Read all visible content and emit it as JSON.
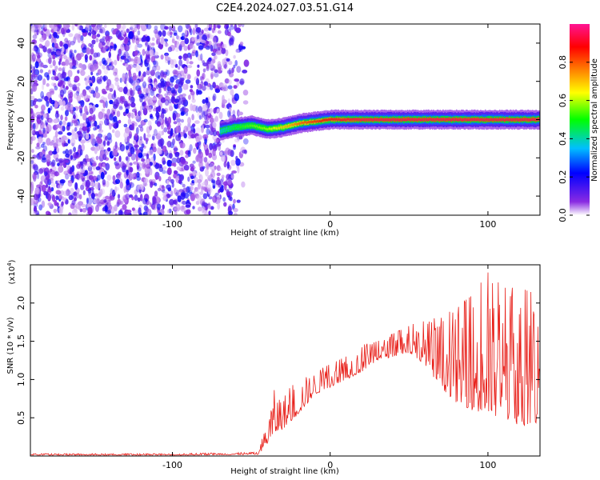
{
  "title": "C2E4.2024.027.03.51.G14",
  "chart_data": [
    {
      "type": "heatmap",
      "xlabel": "Height of straight line (km)",
      "ylabel": "Frequency (Hz)",
      "xlim": [
        -190,
        133
      ],
      "ylim": [
        -50,
        50
      ],
      "x_ticks": [
        -100,
        0,
        100
      ],
      "x_tick_labels": [
        "-100",
        "0",
        "100"
      ],
      "y_ticks": [
        -40,
        -20,
        0,
        20,
        40
      ],
      "y_tick_labels": [
        "-40",
        "-20",
        "0",
        "20",
        "40"
      ],
      "colorbar": {
        "label": "Normalized spectral amplitude",
        "range": [
          0,
          1
        ],
        "ticks": [
          0.0,
          0.2,
          0.4,
          0.6,
          0.8
        ],
        "tick_labels": [
          "0.0",
          "0.2",
          "0.4",
          "0.6",
          "0.8"
        ],
        "colormap": [
          "#ffffff",
          "#8a2be2",
          "#0000ff",
          "#00bfff",
          "#00ff00",
          "#ffff00",
          "#ff8000",
          "#ff0000",
          "#ff1493"
        ]
      },
      "noise_region": {
        "x_range": [
          -190,
          -53
        ],
        "y_range": [
          -50,
          50
        ]
      },
      "signal_track": {
        "x": [
          -70,
          -60,
          -50,
          -40,
          -30,
          -20,
          -10,
          0,
          20,
          40,
          60,
          80,
          100,
          120,
          133
        ],
        "freq": [
          -6,
          -4,
          -3,
          -5,
          -4,
          -2,
          -1,
          0,
          0,
          0,
          0,
          0,
          0,
          0,
          0
        ],
        "amplitude": [
          0.4,
          0.5,
          0.55,
          0.6,
          0.7,
          0.8,
          0.85,
          0.9,
          0.95,
          0.95,
          0.95,
          0.95,
          0.95,
          0.95,
          0.95
        ]
      },
      "grid": false
    },
    {
      "type": "line",
      "xlabel": "Height of straight line (km)",
      "ylabel": "SNR (10 * v/v)",
      "multiplier_label": "(x10",
      "multiplier_exponent": "4",
      "multiplier_close": ")",
      "xlim": [
        -190,
        133
      ],
      "ylim": [
        0,
        2.5
      ],
      "x_ticks": [
        -100,
        0,
        100
      ],
      "x_tick_labels": [
        "-100",
        "0",
        "100"
      ],
      "y_ticks": [
        0.5,
        1.0,
        1.5,
        2.0
      ],
      "y_tick_labels": [
        "0.5",
        "1.0",
        "1.5",
        "2.0"
      ],
      "series_color": "#e8201a",
      "envelope": {
        "x": [
          -190,
          -100,
          -45,
          -40,
          -35,
          -30,
          -20,
          -10,
          0,
          10,
          20,
          30,
          40,
          50,
          60,
          70,
          80,
          90,
          100,
          110,
          120,
          133
        ],
        "base": [
          0.01,
          0.01,
          0.02,
          0.15,
          0.3,
          0.35,
          0.55,
          0.8,
          0.9,
          1.0,
          1.1,
          1.25,
          1.3,
          1.35,
          1.2,
          0.9,
          0.7,
          0.6,
          0.5,
          0.5,
          0.4,
          0.4
        ],
        "peak": [
          0.03,
          0.03,
          0.05,
          0.55,
          0.9,
          0.8,
          1.0,
          1.1,
          1.2,
          1.3,
          1.45,
          1.5,
          1.6,
          1.7,
          1.8,
          1.8,
          1.95,
          2.1,
          2.4,
          2.2,
          2.2,
          2.1
        ]
      },
      "grid": false
    }
  ]
}
